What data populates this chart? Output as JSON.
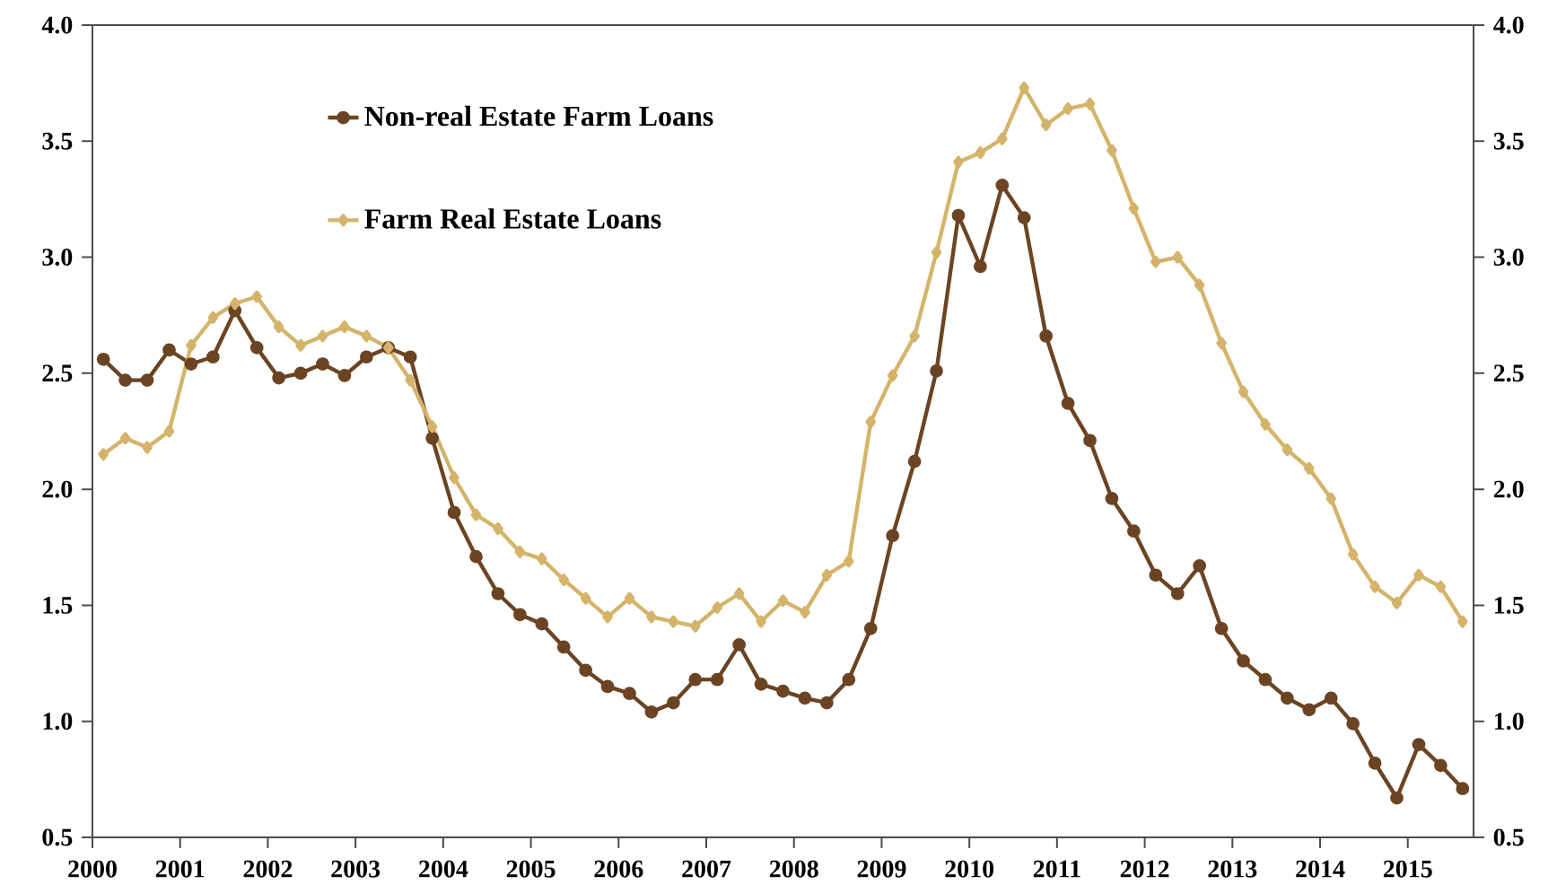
{
  "chart_data": {
    "type": "line",
    "x": [
      2000.125,
      2000.375,
      2000.625,
      2000.875,
      2001.125,
      2001.375,
      2001.625,
      2001.875,
      2002.125,
      2002.375,
      2002.625,
      2002.875,
      2003.125,
      2003.375,
      2003.625,
      2003.875,
      2004.125,
      2004.375,
      2004.625,
      2004.875,
      2005.125,
      2005.375,
      2005.625,
      2005.875,
      2006.125,
      2006.375,
      2006.625,
      2006.875,
      2007.125,
      2007.375,
      2007.625,
      2007.875,
      2008.125,
      2008.375,
      2008.625,
      2008.875,
      2009.125,
      2009.375,
      2009.625,
      2009.875,
      2010.125,
      2010.375,
      2010.625,
      2010.875,
      2011.125,
      2011.375,
      2011.625,
      2011.875,
      2012.125,
      2012.375,
      2012.625,
      2012.875,
      2013.125,
      2013.375,
      2013.625,
      2013.875,
      2014.125,
      2014.375,
      2014.625,
      2014.875,
      2015.125,
      2015.375,
      2015.625
    ],
    "series": [
      {
        "name": "Non-real Estate Farm Loans",
        "color": "#6b4423",
        "marker": "circle",
        "values": [
          2.56,
          2.47,
          2.47,
          2.6,
          2.54,
          2.57,
          2.77,
          2.61,
          2.48,
          2.5,
          2.54,
          2.49,
          2.57,
          2.61,
          2.57,
          2.22,
          1.9,
          1.71,
          1.55,
          1.46,
          1.42,
          1.32,
          1.22,
          1.15,
          1.12,
          1.04,
          1.08,
          1.18,
          1.18,
          1.33,
          1.16,
          1.13,
          1.1,
          1.08,
          1.18,
          1.4,
          1.8,
          2.12,
          2.51,
          3.18,
          2.96,
          3.31,
          3.17,
          2.66,
          2.37,
          2.21,
          1.96,
          1.82,
          1.63,
          1.55,
          1.67,
          1.4,
          1.26,
          1.18,
          1.1,
          1.05,
          1.1,
          0.99,
          0.82,
          0.67,
          0.9,
          0.81,
          0.71
        ]
      },
      {
        "name": "Farm Real Estate Loans",
        "color": "#d4b46a",
        "marker": "diamond",
        "values": [
          2.15,
          2.22,
          2.18,
          2.25,
          2.62,
          2.74,
          2.8,
          2.83,
          2.7,
          2.62,
          2.66,
          2.7,
          2.66,
          2.61,
          2.47,
          2.27,
          2.05,
          1.89,
          1.83,
          1.73,
          1.7,
          1.61,
          1.53,
          1.45,
          1.53,
          1.45,
          1.43,
          1.41,
          1.49,
          1.55,
          1.43,
          1.52,
          1.47,
          1.63,
          1.69,
          2.29,
          2.49,
          2.66,
          3.02,
          3.41,
          3.45,
          3.51,
          3.73,
          3.57,
          3.64,
          3.66,
          3.46,
          3.21,
          2.98,
          3.0,
          2.88,
          2.63,
          2.42,
          2.28,
          2.17,
          2.09,
          1.96,
          1.72,
          1.58,
          1.51,
          1.63,
          1.58,
          1.43
        ]
      }
    ],
    "xlim": [
      2000,
      2015.75
    ],
    "xticks": [
      2000,
      2001,
      2002,
      2003,
      2004,
      2005,
      2006,
      2007,
      2008,
      2009,
      2010,
      2011,
      2012,
      2013,
      2014,
      2015
    ],
    "ylim": [
      0.5,
      4.0
    ],
    "yticks": [
      {
        "value": 0.5,
        "label": "0.5"
      },
      {
        "value": 1.0,
        "label": "1.0"
      },
      {
        "value": 1.5,
        "label": "1.5"
      },
      {
        "value": 2.0,
        "label": "2.0"
      },
      {
        "value": 2.5,
        "label": "2.5"
      },
      {
        "value": 3.0,
        "label": "3.0"
      },
      {
        "value": 3.5,
        "label": "3.5"
      },
      {
        "value": 4.0,
        "label": "4.0"
      }
    ],
    "y2lim": [
      0.5,
      4.0
    ],
    "y2ticks": [
      {
        "value": 0.5,
        "label": "0.5"
      },
      {
        "value": 1.0,
        "label": "1.0"
      },
      {
        "value": 1.5,
        "label": "1.5"
      },
      {
        "value": 2.0,
        "label": "2.0"
      },
      {
        "value": 2.5,
        "label": "2.5"
      },
      {
        "value": 3.0,
        "label": "3.0"
      },
      {
        "value": 3.5,
        "label": "3.5"
      },
      {
        "value": 4.0,
        "label": "4.0"
      }
    ],
    "legend": "top left",
    "grid": false
  }
}
